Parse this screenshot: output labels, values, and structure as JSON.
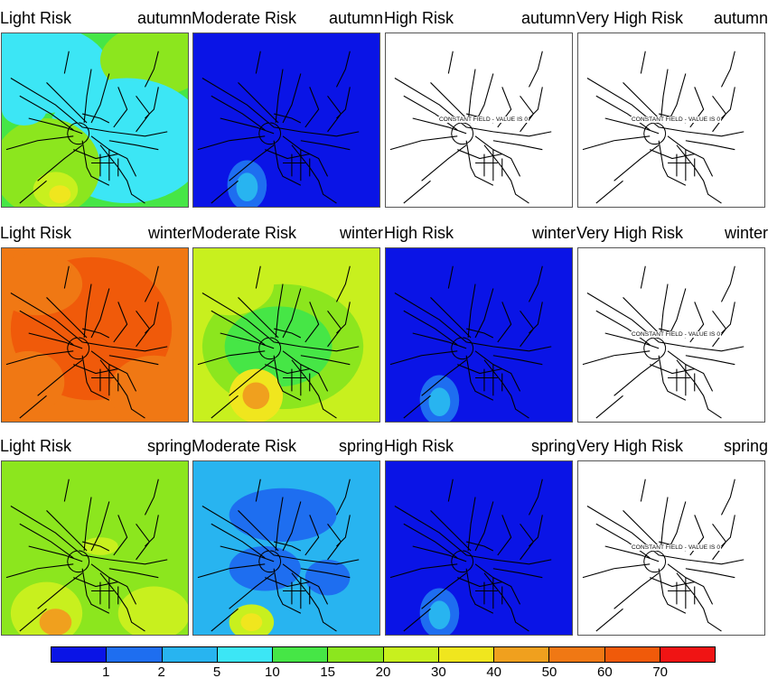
{
  "panels": [
    {
      "risk": "Light Risk",
      "season": "autumn",
      "fill": "gradient-cyan"
    },
    {
      "risk": "Moderate Risk",
      "season": "autumn",
      "fill": "blue"
    },
    {
      "risk": "High Risk",
      "season": "autumn",
      "fill": "constant",
      "const": "CONSTANT FIELD - VALUE IS 0"
    },
    {
      "risk": "Very High Risk",
      "season": "autumn",
      "fill": "constant",
      "const": "CONSTANT FIELD - VALUE IS 0"
    },
    {
      "risk": "Light Risk",
      "season": "winter",
      "fill": "orange"
    },
    {
      "risk": "Moderate Risk",
      "season": "winter",
      "fill": "green-yellow"
    },
    {
      "risk": "High Risk",
      "season": "winter",
      "fill": "blue"
    },
    {
      "risk": "Very High Risk",
      "season": "winter",
      "fill": "constant",
      "const": "CONSTANT FIELD - VALUE IS 0"
    },
    {
      "risk": "Light Risk",
      "season": "spring",
      "fill": "green"
    },
    {
      "risk": "Moderate Risk",
      "season": "spring",
      "fill": "cyan"
    },
    {
      "risk": "High Risk",
      "season": "spring",
      "fill": "blue"
    },
    {
      "risk": "Very High Risk",
      "season": "spring",
      "fill": "constant",
      "const": "CONSTANT FIELD - VALUE IS 0"
    }
  ],
  "colorbar": {
    "colors": [
      "#0a14e6",
      "#1e6ef0",
      "#28b4f0",
      "#3ce6f5",
      "#46e646",
      "#8ce61e",
      "#c8f01e",
      "#f0e61e",
      "#f0a01e",
      "#f07814",
      "#f05a0a",
      "#f01414"
    ],
    "labels": [
      "1",
      "2",
      "5",
      "10",
      "15",
      "20",
      "30",
      "40",
      "50",
      "60",
      "70"
    ]
  }
}
